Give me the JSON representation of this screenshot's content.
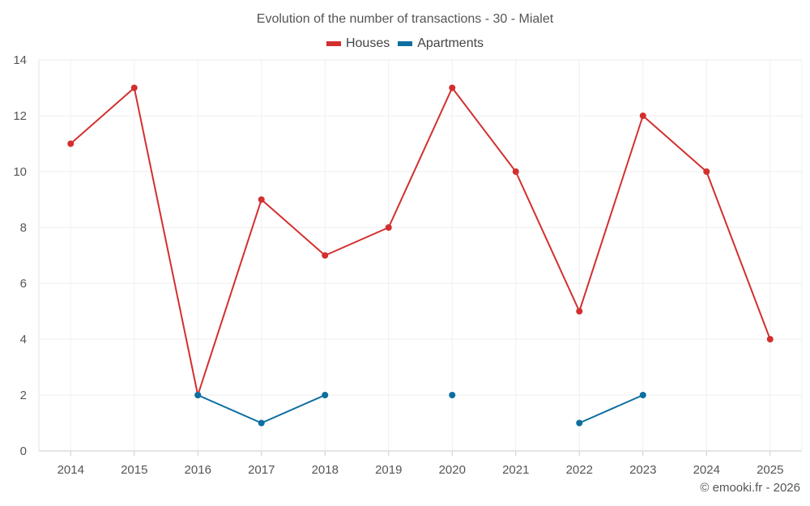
{
  "chart_data": {
    "type": "line",
    "title": "Evolution of the number of transactions - 30 - Mialet",
    "categories": [
      "2014",
      "2015",
      "2016",
      "2017",
      "2018",
      "2019",
      "2020",
      "2021",
      "2022",
      "2023",
      "2024",
      "2025"
    ],
    "series": [
      {
        "name": "Houses",
        "color": "#d32f2f",
        "values": [
          11,
          13,
          2,
          9,
          7,
          8,
          13,
          10,
          5,
          12,
          10,
          4
        ]
      },
      {
        "name": "Apartments",
        "color": "#0d6ea0",
        "values": [
          null,
          null,
          2,
          1,
          2,
          null,
          2,
          null,
          1,
          2,
          null,
          null
        ]
      }
    ],
    "ylim": [
      0,
      14
    ],
    "yticks": [
      0,
      2,
      4,
      6,
      8,
      10,
      12,
      14
    ],
    "xlabel": "",
    "ylabel": "",
    "grid": true,
    "legend": "top-center"
  },
  "footer": {
    "copyright": "© emooki.fr - 2026"
  }
}
